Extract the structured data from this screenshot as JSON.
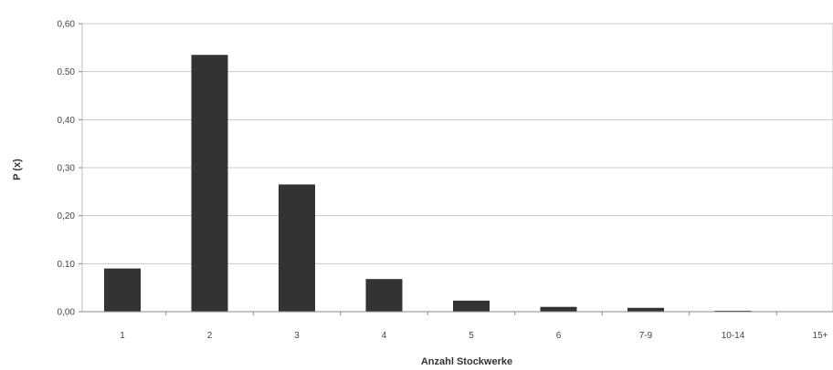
{
  "chart_data": {
    "type": "bar",
    "xlabel": "Anzahl Stockwerke",
    "ylabel": "P (x)",
    "categories": [
      "1",
      "2",
      "3",
      "4",
      "5",
      "6",
      "7-9",
      "10-14",
      "15+"
    ],
    "values": [
      0.09,
      0.535,
      0.265,
      0.068,
      0.023,
      0.01,
      0.008,
      0.002,
      0.0
    ],
    "ylim": [
      0,
      0.6
    ],
    "yticks": [
      0.0,
      0.1,
      0.2,
      0.3,
      0.4,
      0.5,
      0.6
    ],
    "ytick_labels": [
      "0,00",
      "0.10",
      "0,20",
      "0,30",
      "0,40",
      "0.50",
      "0,60"
    ],
    "grid": true,
    "legend": "none",
    "colors": {
      "bar": "#333333",
      "grid": "#c8c8c8",
      "plot_border": "#bdbdbd",
      "axis": "#888888",
      "text": "#444444"
    }
  }
}
